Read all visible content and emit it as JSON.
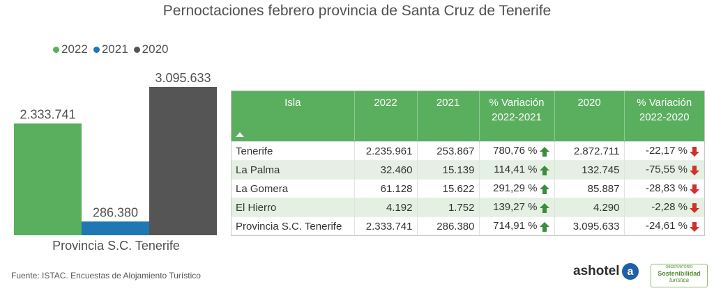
{
  "title": "Pernoctaciones febrero provincia de Santa Cruz de Tenerife",
  "legend": [
    {
      "label": "2022",
      "color": "#5aaf5e"
    },
    {
      "label": "2021",
      "color": "#1f77b4"
    },
    {
      "label": "2020",
      "color": "#555555"
    }
  ],
  "chart_data": [
    {
      "type": "bar",
      "categories": [
        "Provincia S.C. Tenerife"
      ],
      "series": [
        {
          "name": "2022",
          "values": [
            2333741
          ],
          "color": "#5aaf5e",
          "label": "2.333.741"
        },
        {
          "name": "2021",
          "values": [
            286380
          ],
          "color": "#1f77b4",
          "label": "286.380"
        },
        {
          "name": "2020",
          "values": [
            3095633
          ],
          "color": "#555555",
          "label": "3.095.633"
        }
      ],
      "ylim": [
        0,
        3095633
      ],
      "grid": false,
      "legend_position": "top-left"
    },
    {
      "type": "table",
      "columns": [
        "Isla",
        "2022",
        "2021",
        "% Variación 2022-2021",
        "2020",
        "% Variación 2022-2020"
      ],
      "rows": [
        {
          "isla": "Tenerife",
          "y2022": "2.235.961",
          "y2021": "253.867",
          "var1": "780,76 %",
          "var1_dir": "up",
          "y2020": "2.872.711",
          "var2": "-22,17 %",
          "var2_dir": "down"
        },
        {
          "isla": "La Palma",
          "y2022": "32.460",
          "y2021": "15.139",
          "var1": "114,41 %",
          "var1_dir": "up",
          "y2020": "132.745",
          "var2": "-75,55 %",
          "var2_dir": "down"
        },
        {
          "isla": "La Gomera",
          "y2022": "61.128",
          "y2021": "15.622",
          "var1": "291,29 %",
          "var1_dir": "up",
          "y2020": "85.887",
          "var2": "-28,83 %",
          "var2_dir": "down"
        },
        {
          "isla": "El Hierro",
          "y2022": "4.192",
          "y2021": "1.752",
          "var1": "139,27 %",
          "var1_dir": "up",
          "y2020": "4.290",
          "var2": "-2,28 %",
          "var2_dir": "down"
        },
        {
          "isla": "Provincia S.C. Tenerife",
          "y2022": "2.333.741",
          "y2021": "286.380",
          "var1": "714,91 %",
          "var1_dir": "up",
          "y2020": "3.095.633",
          "var2": "-24,61 %",
          "var2_dir": "down"
        }
      ]
    }
  ],
  "table_header": {
    "isla": "Isla",
    "y2022": "2022",
    "y2021": "2021",
    "var1_line1": "% Variación",
    "var1_line2": "2022-2021",
    "y2020": "2020",
    "var2_line1": "% Variación",
    "var2_line2": "2022-2020"
  },
  "arrow_colors": {
    "up": "#3c8c3f",
    "down": "#d0312d"
  },
  "source": "Fuente: ISTAC. Encuestas de Alojamiento Turístico",
  "logos": {
    "ashotel": "ashotel",
    "ashotel_mark": "a",
    "obs_top": "OBSERVATORIO",
    "obs_mid": "Sostenibilidad",
    "obs_bot": "turística"
  }
}
